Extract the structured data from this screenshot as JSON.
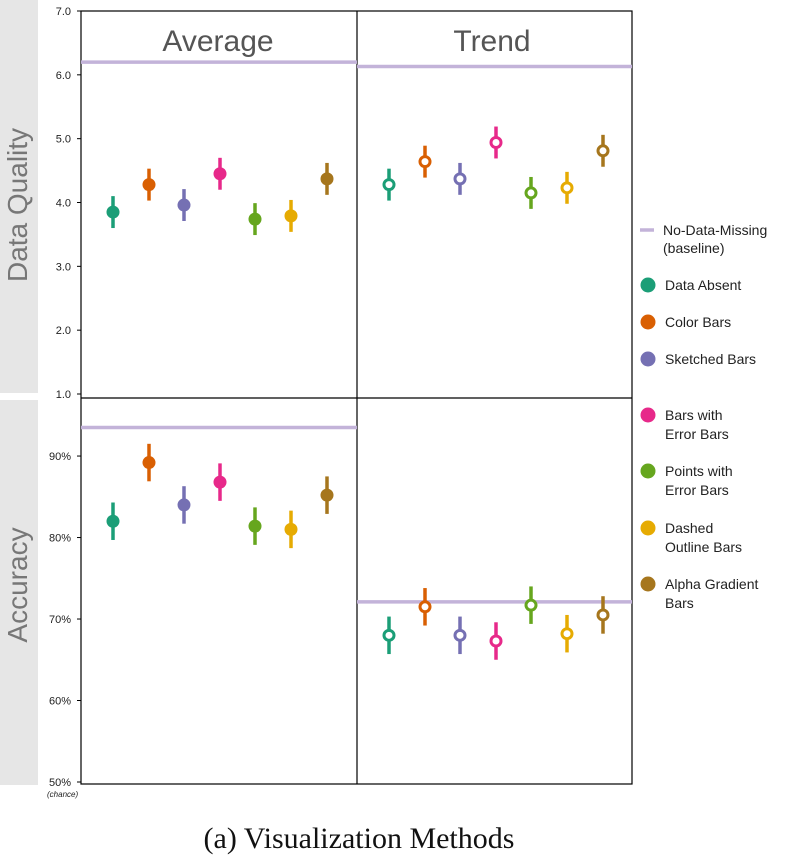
{
  "caption": "(a)  Visualization Methods",
  "column_titles": [
    "Average",
    "Trend"
  ],
  "row_titles": [
    "Data Quality",
    "Accuracy"
  ],
  "legend": {
    "baseline": [
      "No-Data-Missing",
      "(baseline)"
    ],
    "items": [
      {
        "lines": [
          "Data Absent"
        ],
        "color": "#1b9e77"
      },
      {
        "lines": [
          "Color Bars"
        ],
        "color": "#d95f02"
      },
      {
        "lines": [
          "Sketched Bars"
        ],
        "color": "#7570b3"
      },
      {
        "lines": [
          "Bars with",
          "Error Bars"
        ],
        "color": "#e7298a"
      },
      {
        "lines": [
          "Points with",
          "Error Bars"
        ],
        "color": "#66a61e"
      },
      {
        "lines": [
          "Dashed",
          "Outline Bars"
        ],
        "color": "#e6ab02"
      },
      {
        "lines": [
          "Alpha Gradient",
          "Bars"
        ],
        "color": "#a6761d"
      }
    ]
  },
  "colors": {
    "baseline": "#c3b3d9",
    "row_band": "#e6e6e6"
  },
  "chart_data": {
    "type": "scatter",
    "methods": [
      "Data Absent",
      "Color Bars",
      "Sketched Bars",
      "Bars with Error Bars",
      "Points with Error Bars",
      "Dashed Outline Bars",
      "Alpha Gradient Bars"
    ],
    "panels": [
      {
        "row": "Data Quality",
        "column": "Average",
        "marker": "filled",
        "ylim": [
          1.0,
          7.0
        ],
        "yticks": [
          "1.0",
          "2.0",
          "3.0",
          "4.0",
          "5.0",
          "6.0",
          "7.0"
        ],
        "yticks_values": [
          1,
          2,
          3,
          4,
          5,
          6,
          7
        ],
        "baseline": 6.2,
        "values": [
          3.85,
          4.28,
          3.96,
          4.45,
          3.74,
          3.79,
          4.37
        ],
        "err_low": [
          3.6,
          4.03,
          3.71,
          4.2,
          3.49,
          3.54,
          4.12
        ],
        "err_high": [
          4.1,
          4.53,
          4.21,
          4.7,
          3.99,
          4.04,
          4.62
        ]
      },
      {
        "row": "Data Quality",
        "column": "Trend",
        "marker": "hollow",
        "ylim": [
          1.0,
          7.0
        ],
        "baseline": 6.13,
        "values": [
          4.28,
          4.64,
          4.37,
          4.94,
          4.15,
          4.23,
          4.81
        ],
        "err_low": [
          4.03,
          4.39,
          4.12,
          4.69,
          3.9,
          3.98,
          4.56
        ],
        "err_high": [
          4.53,
          4.89,
          4.62,
          5.19,
          4.4,
          4.48,
          5.06
        ]
      },
      {
        "row": "Accuracy",
        "column": "Average",
        "marker": "filled",
        "ylim": [
          50,
          97
        ],
        "yticks": [
          "50%",
          "60%",
          "70%",
          "80%",
          "90%"
        ],
        "yticks_values": [
          50,
          60,
          70,
          80,
          90
        ],
        "ytick_note": "(chance)",
        "baseline": 93.5,
        "values": [
          82.0,
          89.2,
          84.0,
          86.8,
          81.4,
          81.0,
          85.2
        ],
        "err_low": [
          79.7,
          86.9,
          81.7,
          84.5,
          79.1,
          78.7,
          82.9
        ],
        "err_high": [
          84.3,
          91.5,
          86.3,
          89.1,
          83.7,
          83.3,
          87.5
        ]
      },
      {
        "row": "Accuracy",
        "column": "Trend",
        "marker": "hollow",
        "ylim": [
          50,
          97
        ],
        "baseline": 72.1,
        "values": [
          68.0,
          71.5,
          68.0,
          67.3,
          71.7,
          68.2,
          70.5
        ],
        "err_low": [
          65.7,
          69.2,
          65.7,
          65.0,
          69.4,
          65.9,
          68.2
        ],
        "err_high": [
          70.3,
          73.8,
          70.3,
          69.6,
          74.0,
          70.5,
          72.8
        ]
      }
    ]
  }
}
